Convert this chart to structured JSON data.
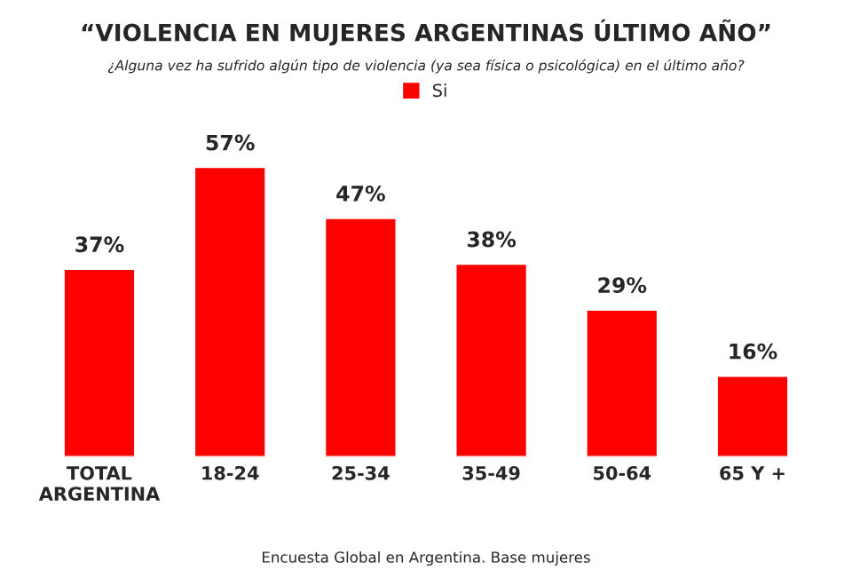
{
  "chart_data": {
    "type": "bar",
    "title": "“VIOLENCIA EN MUJERES ARGENTINAS ÚLTIMO AÑO”",
    "subtitle": "¿Alguna vez ha sufrido algún tipo de violencia (ya sea física o psicológica) en el último año?",
    "categories": [
      "TOTAL\nARGENTINA",
      "18-24",
      "25-34",
      "35-49",
      "50-64",
      "65 Y +"
    ],
    "series": [
      {
        "name": "Si",
        "color": "#ff0000",
        "values": [
          37,
          57,
          47,
          38,
          29,
          16
        ],
        "value_labels": [
          "37%",
          "57%",
          "47%",
          "38%",
          "29%",
          "16%"
        ]
      }
    ],
    "legend": "top",
    "grid": false,
    "annotations": [
      "Encuesta Global en Argentina. Base mujeres"
    ]
  }
}
